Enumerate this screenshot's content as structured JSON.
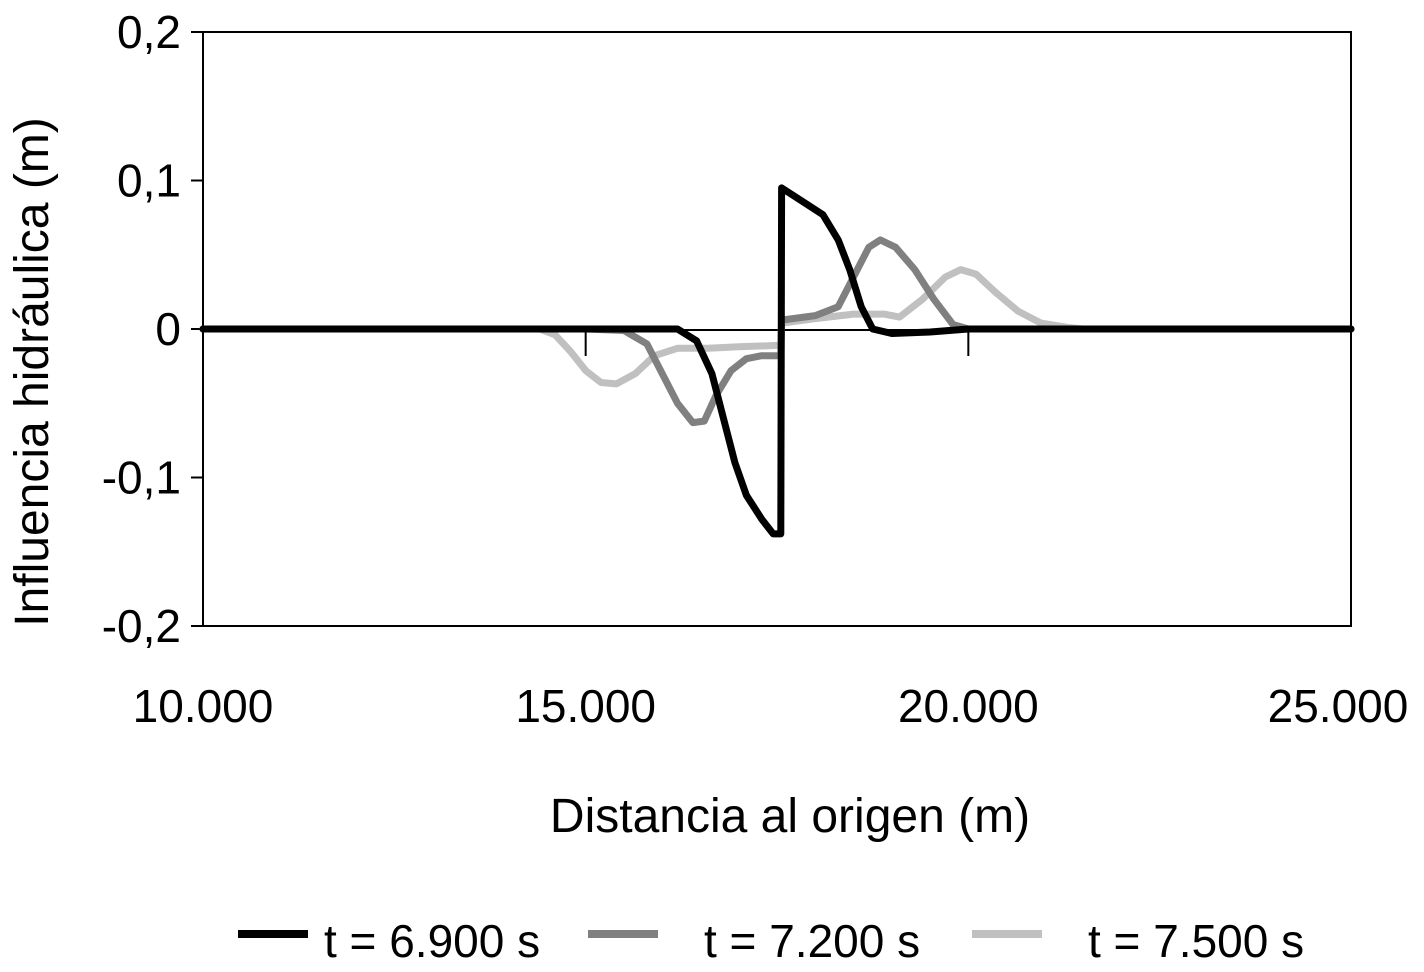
{
  "chart_data": {
    "type": "line",
    "title": "",
    "xlabel": "Distancia al origen (m)",
    "ylabel": "Influencia hidráulica (m)",
    "xlim": [
      10000,
      25000
    ],
    "ylim": [
      -0.2,
      0.2
    ],
    "x_ticks": [
      10000,
      15000,
      20000,
      25000
    ],
    "x_tick_labels": [
      "10.000",
      "15.000",
      "20.000",
      "25.000"
    ],
    "y_ticks": [
      0.2,
      0.1,
      0,
      -0.1,
      -0.2
    ],
    "y_tick_labels": [
      "0,2",
      "0,1",
      "0",
      "-0,1",
      "-0,2"
    ],
    "grid": false,
    "legend_position": "bottom",
    "series": [
      {
        "name": "t = 6.900 s",
        "color": "#000000",
        "points": [
          [
            10000,
            0
          ],
          [
            14400,
            0
          ],
          [
            15000,
            0
          ],
          [
            15500,
            0
          ],
          [
            16200,
            0
          ],
          [
            16450,
            -0.008
          ],
          [
            16650,
            -0.03
          ],
          [
            16800,
            -0.06
          ],
          [
            16950,
            -0.09
          ],
          [
            17100,
            -0.112
          ],
          [
            17300,
            -0.128
          ],
          [
            17450,
            -0.138
          ],
          [
            17550,
            -0.138
          ],
          [
            17560,
            0.095
          ],
          [
            17800,
            0.087
          ],
          [
            18100,
            0.077
          ],
          [
            18300,
            0.06
          ],
          [
            18450,
            0.04
          ],
          [
            18600,
            0.015
          ],
          [
            18750,
            0.0
          ],
          [
            19000,
            -0.003
          ],
          [
            19500,
            -0.002
          ],
          [
            20000,
            0
          ],
          [
            20500,
            0
          ],
          [
            25000,
            0
          ]
        ]
      },
      {
        "name": "t = 7.200 s",
        "color": "#808080",
        "points": [
          [
            10000,
            0
          ],
          [
            14400,
            0
          ],
          [
            15000,
            0
          ],
          [
            15500,
            -0.001
          ],
          [
            15800,
            -0.01
          ],
          [
            16000,
            -0.03
          ],
          [
            16200,
            -0.05
          ],
          [
            16400,
            -0.063
          ],
          [
            16550,
            -0.062
          ],
          [
            16700,
            -0.045
          ],
          [
            16900,
            -0.028
          ],
          [
            17100,
            -0.02
          ],
          [
            17300,
            -0.018
          ],
          [
            17550,
            -0.018
          ],
          [
            17560,
            0.006
          ],
          [
            18000,
            0.009
          ],
          [
            18300,
            0.015
          ],
          [
            18500,
            0.035
          ],
          [
            18700,
            0.055
          ],
          [
            18850,
            0.06
          ],
          [
            19050,
            0.055
          ],
          [
            19300,
            0.04
          ],
          [
            19550,
            0.02
          ],
          [
            19800,
            0.003
          ],
          [
            20000,
            0
          ],
          [
            21000,
            0
          ],
          [
            25000,
            0
          ]
        ]
      },
      {
        "name": "t = 7.500 s",
        "color": "#c0c0c0",
        "points": [
          [
            10000,
            0
          ],
          [
            14400,
            0
          ],
          [
            14600,
            -0.004
          ],
          [
            14800,
            -0.015
          ],
          [
            15000,
            -0.028
          ],
          [
            15200,
            -0.036
          ],
          [
            15400,
            -0.037
          ],
          [
            15650,
            -0.03
          ],
          [
            15900,
            -0.018
          ],
          [
            16200,
            -0.013
          ],
          [
            16600,
            -0.013
          ],
          [
            17000,
            -0.012
          ],
          [
            17550,
            -0.011
          ],
          [
            17560,
            0.004
          ],
          [
            18000,
            0.007
          ],
          [
            18500,
            0.01
          ],
          [
            18900,
            0.01
          ],
          [
            19100,
            0.008
          ],
          [
            19400,
            0.02
          ],
          [
            19700,
            0.035
          ],
          [
            19900,
            0.04
          ],
          [
            20100,
            0.037
          ],
          [
            20350,
            0.025
          ],
          [
            20650,
            0.012
          ],
          [
            20950,
            0.004
          ],
          [
            21300,
            0.001
          ],
          [
            21500,
            0
          ],
          [
            25000,
            0
          ]
        ]
      }
    ]
  }
}
